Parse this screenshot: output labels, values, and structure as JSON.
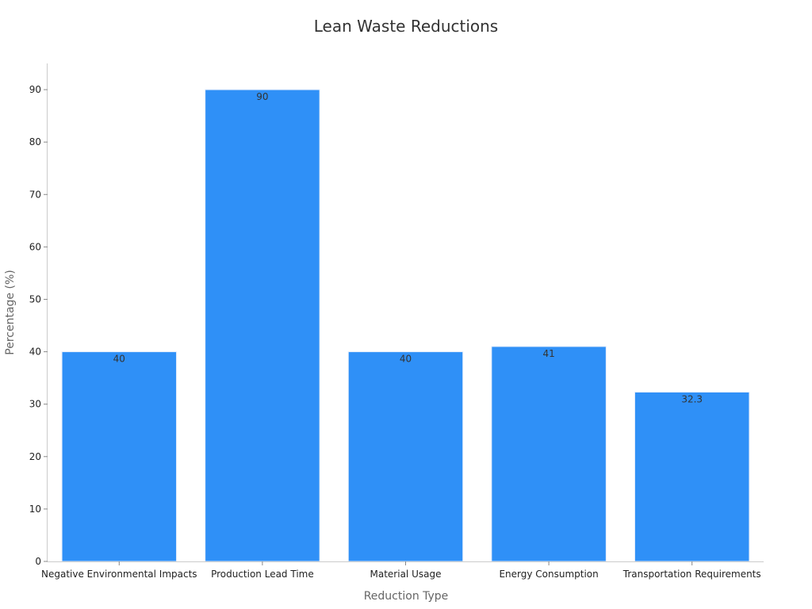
{
  "chart_data": {
    "type": "bar",
    "title": "Lean Waste Reductions",
    "xlabel": "Reduction Type",
    "ylabel": "Percentage (%)",
    "categories": [
      "Negative Environmental Impacts",
      "Production Lead Time",
      "Material Usage",
      "Energy Consumption",
      "Transportation Requirements"
    ],
    "values": [
      40,
      90,
      40,
      41,
      32.3
    ],
    "data_labels": [
      "40",
      "90",
      "40",
      "41",
      "32.3"
    ],
    "ylim": [
      0,
      95
    ],
    "yticks": [
      0,
      10,
      20,
      30,
      40,
      50,
      60,
      70,
      80,
      90
    ],
    "grid": false,
    "legend": "none",
    "colors": {
      "bar": "#2f90f7",
      "bar_edge": "#e6eefb"
    }
  }
}
